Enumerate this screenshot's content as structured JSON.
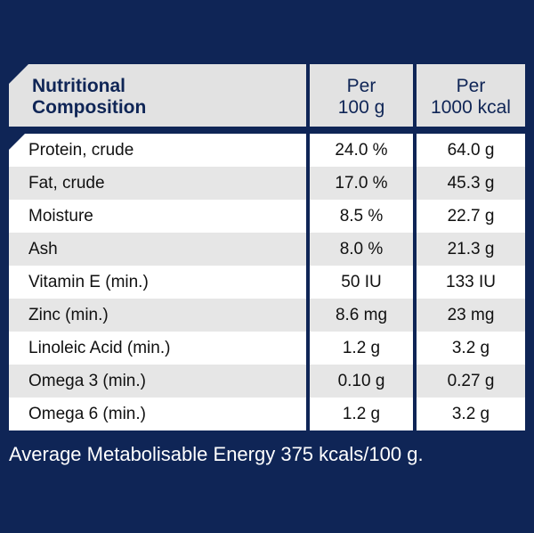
{
  "header": {
    "name_line1": "Nutritional",
    "name_line2": "Composition",
    "per100_line1": "Per",
    "per100_line2": "100 g",
    "per1000_line1": "Per",
    "per1000_line2": "1000 kcal"
  },
  "rows": [
    {
      "name": "Protein, crude",
      "per100": "24.0 %",
      "per1000": "64.0 g"
    },
    {
      "name": "Fat, crude",
      "per100": "17.0 %",
      "per1000": "45.3 g"
    },
    {
      "name": "Moisture",
      "per100": "8.5 %",
      "per1000": "22.7 g"
    },
    {
      "name": "Ash",
      "per100": "8.0 %",
      "per1000": "21.3 g"
    },
    {
      "name": "Vitamin E (min.)",
      "per100": "50 IU",
      "per1000": "133 IU"
    },
    {
      "name": "Zinc (min.)",
      "per100": "8.6 mg",
      "per1000": "23 mg"
    },
    {
      "name": "Linoleic Acid (min.)",
      "per100": "1.2 g",
      "per1000": "3.2 g"
    },
    {
      "name": "Omega 3 (min.)",
      "per100": "0.10 g",
      "per1000": "0.27 g"
    },
    {
      "name": "Omega 6 (min.)",
      "per100": "1.2 g",
      "per1000": "3.2 g"
    }
  ],
  "footnote": "Average Metabolisable Energy 375 kcals/100 g."
}
